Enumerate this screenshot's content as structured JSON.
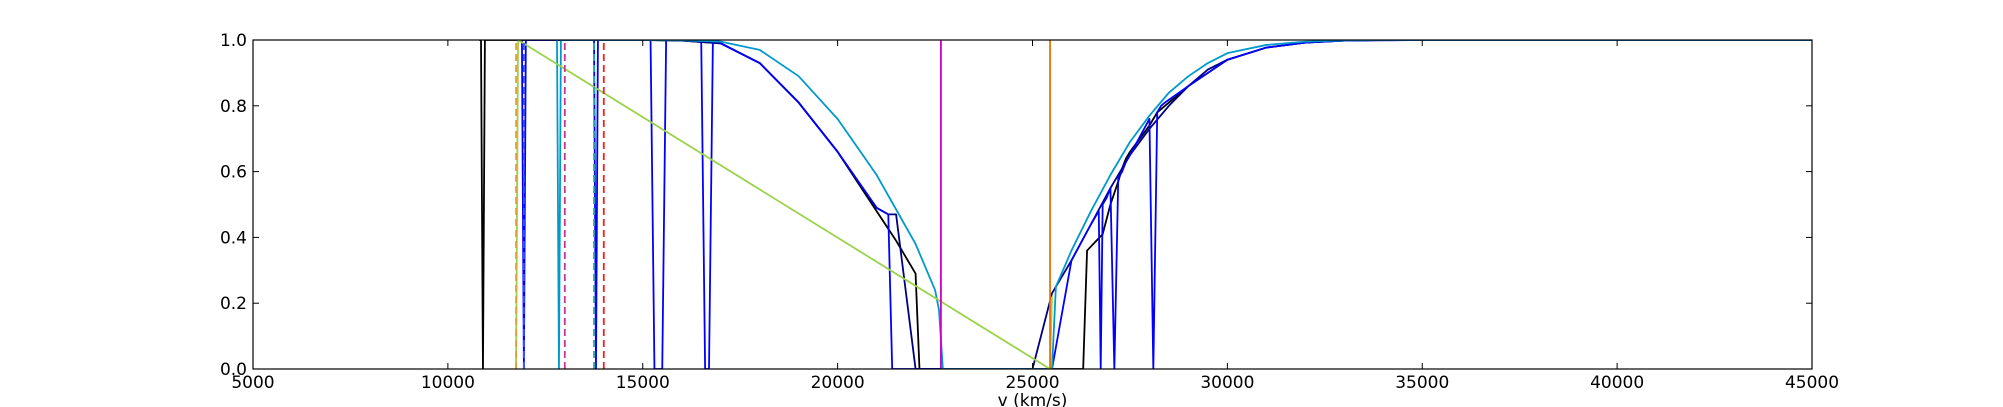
{
  "chart_data": {
    "type": "line",
    "title": "",
    "xlabel": "v (km/s)",
    "ylabel": "",
    "xlim": [
      5000,
      45000
    ],
    "ylim": [
      0.0,
      1.0
    ],
    "xticks": [
      5000,
      10000,
      15000,
      20000,
      25000,
      30000,
      35000,
      40000,
      45000
    ],
    "yticks": [
      0.0,
      0.2,
      0.4,
      0.6,
      0.8,
      1.0
    ],
    "xtick_labels": [
      "5000",
      "10000",
      "15000",
      "20000",
      "25000",
      "30000",
      "35000",
      "40000",
      "45000"
    ],
    "ytick_labels": [
      "0.0",
      "0.2",
      "0.4",
      "0.6",
      "0.8",
      "1.0"
    ],
    "grid": false,
    "legend": "none",
    "series": [
      {
        "color": "#000000",
        "style": "solid",
        "x": [
          10800,
          10850,
          10900,
          10950,
          15000,
          16000,
          17000,
          18000,
          19000,
          20000,
          21000,
          21500,
          22000,
          22100,
          22500,
          26200,
          26300,
          26400,
          26800,
          27000,
          27200,
          27300,
          27400,
          27500,
          28000,
          28200,
          29000,
          30000,
          31000,
          32000,
          33000,
          34000,
          35000,
          45000
        ],
        "y": [
          1.0,
          1.0,
          0.0,
          1.0,
          1.0,
          0.998,
          0.99,
          0.93,
          0.81,
          0.66,
          0.48,
          0.39,
          0.29,
          0.0,
          0.0,
          0.0,
          0.0,
          0.36,
          0.41,
          0.5,
          0.57,
          0.61,
          0.64,
          0.66,
          0.74,
          0.78,
          0.86,
          0.94,
          0.977,
          0.992,
          0.998,
          1.0,
          1.0,
          1.0
        ]
      },
      {
        "color": "#000080",
        "style": "solid",
        "x": [
          15000,
          16000,
          17000,
          18000,
          19000,
          20000,
          21000,
          21300,
          21500,
          22000,
          25000,
          25500,
          26000,
          26500,
          27000,
          27500,
          28000,
          28500,
          29000,
          29500,
          30000,
          31000,
          32000,
          33000,
          34000,
          35000,
          45000
        ],
        "y": [
          1.0,
          0.998,
          0.99,
          0.93,
          0.81,
          0.66,
          0.49,
          0.47,
          0.47,
          0.0,
          0.0,
          0.23,
          0.33,
          0.44,
          0.55,
          0.65,
          0.73,
          0.8,
          0.86,
          0.91,
          0.94,
          0.977,
          0.992,
          0.998,
          1.0,
          1.0,
          1.0
        ]
      },
      {
        "color": "#0000ff",
        "style": "solid",
        "x": [
          11900,
          11950,
          12000,
          13750,
          13800,
          13850,
          15200,
          15300,
          15500,
          15600,
          16500,
          16600,
          16700,
          16800,
          16900,
          17000,
          18000,
          19000,
          20000,
          21000,
          21300,
          21400,
          21500,
          25500,
          26000,
          26500,
          26700,
          26750,
          26800,
          26900,
          27000,
          27100,
          27200,
          27300,
          27400,
          27500,
          28000,
          28100,
          28200,
          28300,
          28400,
          29000,
          30000,
          31000,
          32000,
          33000,
          35000,
          45000
        ],
        "y": [
          1.0,
          0.0,
          1.0,
          1.0,
          0.0,
          1.0,
          1.0,
          0.0,
          0.0,
          1.0,
          1.0,
          0.0,
          0.0,
          1.0,
          1.0,
          0.99,
          0.93,
          0.81,
          0.66,
          0.49,
          0.47,
          0.0,
          0.0,
          0.0,
          0.33,
          0.44,
          0.48,
          0.0,
          0.5,
          0.52,
          0.55,
          0.0,
          0.58,
          0.6,
          0.63,
          0.65,
          0.76,
          0.0,
          0.78,
          0.8,
          0.81,
          0.86,
          0.94,
          0.977,
          0.992,
          0.998,
          1.0,
          1.0
        ]
      },
      {
        "color": "#0099cc",
        "style": "solid",
        "x": [
          12800,
          12850,
          12900,
          15000,
          16000,
          17000,
          18000,
          19000,
          20000,
          21000,
          22000,
          22500,
          22600,
          22700,
          25500,
          25600,
          26000,
          26500,
          27000,
          27500,
          28000,
          28500,
          29000,
          29500,
          30000,
          31000,
          32000,
          33000,
          34000,
          35000,
          45000
        ],
        "y": [
          1.0,
          0.0,
          1.0,
          1.0,
          0.999,
          0.995,
          0.97,
          0.89,
          0.76,
          0.59,
          0.38,
          0.24,
          0.18,
          0.0,
          0.0,
          0.25,
          0.36,
          0.48,
          0.59,
          0.69,
          0.77,
          0.84,
          0.89,
          0.93,
          0.96,
          0.985,
          0.995,
          0.999,
          1.0,
          1.0,
          1.0
        ]
      },
      {
        "color": "#9ad24a",
        "style": "solid",
        "x": [
          11750,
          11800,
          25450,
          25500
        ],
        "y": [
          0.0,
          1.0,
          0.0,
          0.22
        ]
      },
      {
        "color": "#cc00cc",
        "style": "solid",
        "x": [
          22650,
          22650
        ],
        "y": [
          0.0,
          1.0
        ]
      },
      {
        "color": "#e07800",
        "style": "solid",
        "x": [
          25450,
          25450
        ],
        "y": [
          0.0,
          1.0
        ]
      },
      {
        "color": "#e0a030",
        "style": "dashed",
        "x": [
          11750,
          11750
        ],
        "y": [
          0.0,
          1.0
        ]
      },
      {
        "color": "#3355ff",
        "style": "dashed",
        "x": [
          11950,
          11950
        ],
        "y": [
          0.0,
          1.0
        ]
      },
      {
        "color": "#cc3399",
        "style": "dashed",
        "x": [
          13000,
          13000
        ],
        "y": [
          0.0,
          1.0
        ]
      },
      {
        "color": "#22aaaa",
        "style": "dashed",
        "x": [
          13750,
          13750
        ],
        "y": [
          0.0,
          1.0
        ]
      },
      {
        "color": "#ee2222",
        "style": "dashed",
        "x": [
          14000,
          14000
        ],
        "y": [
          0.0,
          1.0
        ]
      }
    ]
  }
}
